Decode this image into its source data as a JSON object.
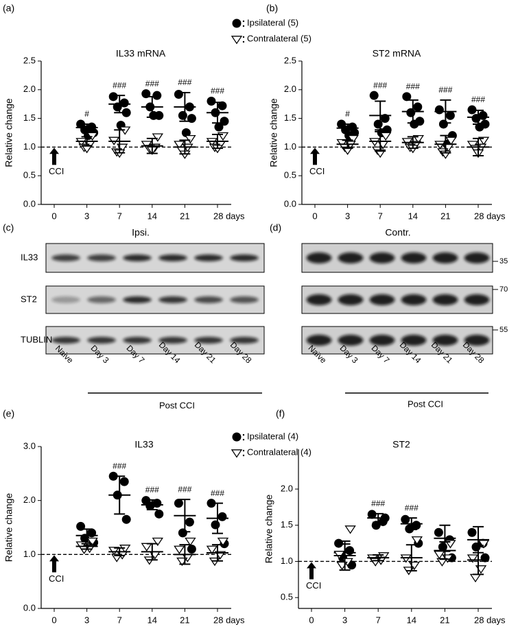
{
  "chart_data": [
    {
      "type": "scatter",
      "panel": "(a)",
      "title": "IL33 mRNA",
      "y_label": "Relative change",
      "categories": [
        "0",
        "3",
        "7",
        "14",
        "21",
        "28 days"
      ],
      "ylim": [
        0,
        2.5
      ],
      "yticks": [
        {
          "value": 0,
          "label": "0.0"
        },
        0.5,
        {
          "value": 1,
          "label": "1.0"
        },
        1.5,
        {
          "value": 2,
          "label": "2.0"
        },
        2.5
      ],
      "reference_line": 1,
      "arrow_label": "CCI",
      "legend": true,
      "annotations": [
        null,
        "#",
        "###",
        "###",
        "###",
        "###"
      ],
      "series": [
        {
          "name": "Ipsilateral (5)",
          "marker": "circle",
          "color": "#000000",
          "values": [
            null,
            [
              1.4,
              1.35,
              1.3,
              1.25,
              1.2
            ],
            [
              1.88,
              1.77,
              1.7,
              1.6,
              1.38
            ],
            [
              1.93,
              1.9,
              1.7,
              1.55,
              1.55
            ],
            [
              1.92,
              1.7,
              1.55,
              1.5,
              1.25
            ],
            [
              1.8,
              1.72,
              1.6,
              1.45,
              1.35
            ]
          ],
          "means": [
            null,
            1.34,
            1.75,
            1.7,
            1.7,
            1.6
          ],
          "sd": [
            null,
            0.06,
            0.15,
            0.18,
            0.25,
            0.18
          ]
        },
        {
          "name": "Contralateral (5)",
          "marker": "triangle-down",
          "color": "#000000",
          "values": [
            null,
            [
              1.2,
              1.1,
              1.05,
              1.0,
              0.98
            ],
            [
              1.3,
              1.12,
              1.0,
              0.92,
              0.9
            ],
            [
              1.18,
              1.05,
              1.0,
              0.98,
              0.95
            ],
            [
              1.15,
              1.05,
              1.0,
              0.95,
              0.88
            ],
            [
              1.2,
              1.1,
              1.05,
              1.0,
              0.98
            ]
          ],
          "means": [
            null,
            1.1,
            1.1,
            1.02,
            1.0,
            1.1
          ],
          "sd": [
            null,
            0.08,
            0.2,
            0.13,
            0.12,
            0.12
          ]
        }
      ]
    },
    {
      "type": "scatter",
      "panel": "(b)",
      "title": "ST2 mRNA",
      "y_label": "Relative change",
      "categories": [
        "0",
        "3",
        "7",
        "14",
        "21",
        "28 days"
      ],
      "ylim": [
        0,
        2.5
      ],
      "yticks": [
        {
          "value": 0,
          "label": "0.0"
        },
        0.5,
        {
          "value": 1,
          "label": "1.0"
        },
        1.5,
        {
          "value": 2,
          "label": "2.0"
        },
        2.5
      ],
      "reference_line": 1,
      "arrow_label": "CCI",
      "annotations": [
        null,
        "#",
        "###",
        "###",
        "###",
        "###"
      ],
      "series": [
        {
          "marker": "circle",
          "color": "#000000",
          "values": [
            null,
            [
              1.4,
              1.35,
              1.3,
              1.25,
              1.2
            ],
            [
              1.9,
              1.5,
              1.4,
              1.3,
              1.25
            ],
            [
              1.88,
              1.7,
              1.6,
              1.45,
              1.4
            ],
            [
              1.65,
              1.55,
              1.4,
              1.2,
              1.05
            ],
            [
              1.65,
              1.55,
              1.5,
              1.4,
              1.35
            ]
          ],
          "means": [
            null,
            1.33,
            1.55,
            1.62,
            1.62,
            1.52
          ],
          "sd": [
            null,
            0.07,
            0.25,
            0.2,
            0.2,
            0.12
          ]
        },
        {
          "marker": "triangle-down",
          "color": "#000000",
          "values": [
            null,
            [
              1.15,
              1.08,
              1.05,
              1.0,
              0.95
            ],
            [
              1.2,
              1.1,
              1.05,
              0.95,
              0.9
            ],
            [
              1.15,
              1.1,
              1.05,
              1.0,
              0.98
            ],
            [
              1.12,
              1.05,
              1.0,
              0.92,
              0.88
            ],
            [
              1.12,
              1.05,
              1.0,
              0.98,
              0.9
            ]
          ],
          "means": [
            null,
            1.05,
            1.1,
            1.08,
            1.05,
            1.0
          ],
          "sd": [
            null,
            0.07,
            0.17,
            0.1,
            0.15,
            0.15
          ]
        }
      ]
    },
    {
      "type": "scatter",
      "panel": "(e)",
      "title": "IL33",
      "y_label": "Relative change",
      "categories": [
        "0",
        "3",
        "7",
        "14",
        "21",
        "28 days"
      ],
      "ylim": [
        0,
        3
      ],
      "yticks": [
        {
          "value": 0,
          "label": "0.0"
        },
        {
          "value": 1,
          "label": "1.0"
        },
        {
          "value": 2,
          "label": "2.0"
        },
        {
          "value": 3,
          "label": "3.0"
        }
      ],
      "reference_line": 1,
      "arrow_label": "CCI",
      "legend": true,
      "annotations": [
        null,
        null,
        "###",
        "###",
        "###",
        "###"
      ],
      "series": [
        {
          "name": "Ipsilateral (4)",
          "marker": "circle",
          "color": "#000000",
          "values": [
            null,
            [
              1.52,
              1.4,
              1.3,
              1.22
            ],
            [
              2.45,
              2.35,
              2.1,
              1.65
            ],
            [
              2.0,
              1.95,
              1.9,
              1.75
            ],
            [
              1.95,
              1.6,
              1.4,
              1.1
            ],
            [
              1.95,
              1.7,
              1.55,
              1.2
            ]
          ],
          "means": [
            null,
            1.35,
            2.1,
            1.92,
            1.72,
            1.67
          ],
          "sd": [
            null,
            0.12,
            0.35,
            0.09,
            0.3,
            0.28
          ]
        },
        {
          "name": "Contralateral (4)",
          "marker": "triangle-down",
          "color": "#000000",
          "values": [
            null,
            [
              1.25,
              1.18,
              1.12,
              1.1
            ],
            [
              1.12,
              1.08,
              1.0,
              0.95
            ],
            [
              1.25,
              1.15,
              1.0,
              0.9
            ],
            [
              1.25,
              1.1,
              0.95,
              0.88
            ],
            [
              1.25,
              1.1,
              1.0,
              0.88
            ]
          ],
          "means": [
            null,
            1.15,
            1.05,
            1.05,
            1.0,
            1.03
          ],
          "sd": [
            null,
            0.05,
            0.07,
            0.15,
            0.18,
            0.15
          ]
        }
      ]
    },
    {
      "type": "scatter",
      "panel": "(f)",
      "title": "ST2",
      "y_label": "Relative change",
      "categories": [
        "0",
        "3",
        "7",
        "14",
        "21",
        "28 days"
      ],
      "ylim": [
        0.35,
        2.55
      ],
      "yticks": [
        0.5,
        {
          "value": 1,
          "label": "1.0"
        },
        1.5,
        {
          "value": 2,
          "label": "2.0"
        }
      ],
      "reference_line": 1,
      "arrow_label": "CCI",
      "annotations": [
        null,
        null,
        "###",
        "###",
        null,
        null
      ],
      "series": [
        {
          "marker": "circle",
          "color": "#000000",
          "values": [
            null,
            [
              1.25,
              1.15,
              1.05,
              0.95
            ],
            [
              1.65,
              1.55,
              1.5,
              1.6
            ],
            [
              1.58,
              1.5,
              1.45,
              1.25
            ],
            [
              1.4,
              1.3,
              1.2,
              1.05
            ],
            [
              1.4,
              1.25,
              1.2,
              1.05
            ]
          ],
          "means": [
            null,
            1.12,
            1.6,
            1.52,
            1.32,
            1.3
          ],
          "sd": [
            null,
            0.12,
            0.06,
            0.08,
            0.18,
            0.18
          ]
        },
        {
          "marker": "triangle-down",
          "color": "#000000",
          "values": [
            null,
            [
              1.45,
              1.1,
              1.0,
              0.95
            ],
            [
              1.08,
              1.05,
              1.02,
              1.0
            ],
            [
              1.3,
              1.05,
              0.95,
              0.88
            ],
            [
              1.25,
              1.1,
              1.05,
              1.0
            ],
            [
              1.25,
              1.05,
              0.9,
              0.78
            ]
          ],
          "means": [
            null,
            1.08,
            1.05,
            1.05,
            1.15,
            1.02
          ],
          "sd": [
            null,
            0.2,
            0.04,
            0.18,
            0.12,
            0.2
          ]
        }
      ]
    }
  ],
  "blots": [
    {
      "panel": "(c)",
      "title": "Ipsi.",
      "rows": [
        "IL33",
        "ST2",
        "TUBLIN"
      ],
      "lanes": [
        "Naive",
        "Day 3",
        "Day 7",
        "Day 14",
        "Day 21",
        "Day 28"
      ],
      "group_label": "Post CCI"
    },
    {
      "panel": "(d)",
      "title": "Contr.",
      "markers": [
        35,
        70,
        55
      ],
      "lanes": [
        "Naïve",
        "Day 3",
        "Day 7",
        "Day 14",
        "Day 21",
        "Day 28"
      ],
      "group_label": "Post CCI"
    }
  ]
}
